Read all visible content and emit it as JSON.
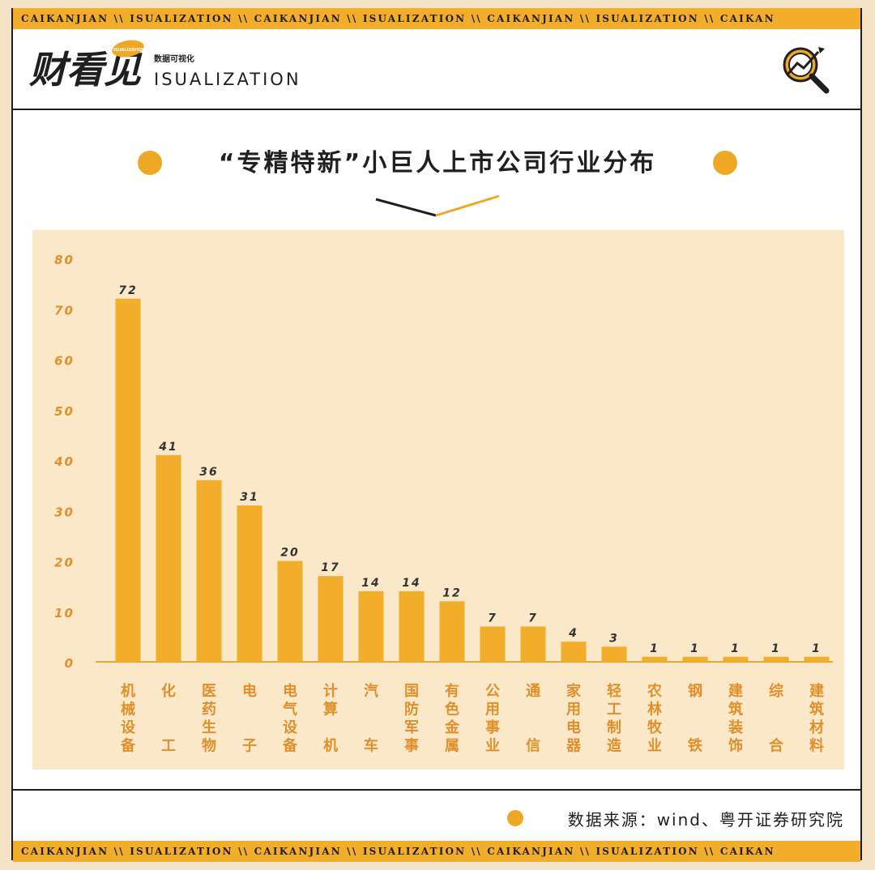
{
  "header": {
    "band_text": "CAIKANJIAN \\\\ ISUALIZATION \\\\ CAIKANJIAN \\\\ ISUALIZATION \\\\ CAIKANJIAN \\\\ ISUALIZATION \\\\ CAIKAN",
    "logo_sub": "数据可视化",
    "logo_text": "ISUALIZATION",
    "logo_glyphs": "财看见",
    "logo_badge": "ISUALIZATION"
  },
  "title": "“专精特新”小巨人上市公司行业分布",
  "footer": {
    "source": "数据来源：wind、粤开证券研究院"
  },
  "colors": {
    "accent": "#efa826",
    "bar": "#f2ad2b",
    "plot_bg": "#fbe8c8",
    "axis_text": "#e08f2a",
    "ink": "#1f1f1f"
  },
  "chart_data": {
    "type": "bar",
    "categories": [
      "机械设备",
      "化工",
      "医药生物",
      "电子",
      "电气设备",
      "计算机",
      "汽车",
      "国防军事",
      "有色金属",
      "公用事业",
      "通信",
      "家用电器",
      "轻工制造",
      "农林牧业",
      "钢铁",
      "建筑装饰",
      "综合",
      "建筑材料"
    ],
    "values": [
      72,
      41,
      36,
      31,
      20,
      17,
      14,
      14,
      12,
      7,
      7,
      4,
      3,
      1,
      1,
      1,
      1,
      1
    ],
    "yticks": [
      0,
      10,
      20,
      30,
      40,
      50,
      60,
      70,
      80
    ],
    "ylim": [
      0,
      80
    ],
    "title": "“专精特新”小巨人上市公司行业分布",
    "xlabel": "",
    "ylabel": "",
    "grid": false,
    "legend": "none"
  }
}
